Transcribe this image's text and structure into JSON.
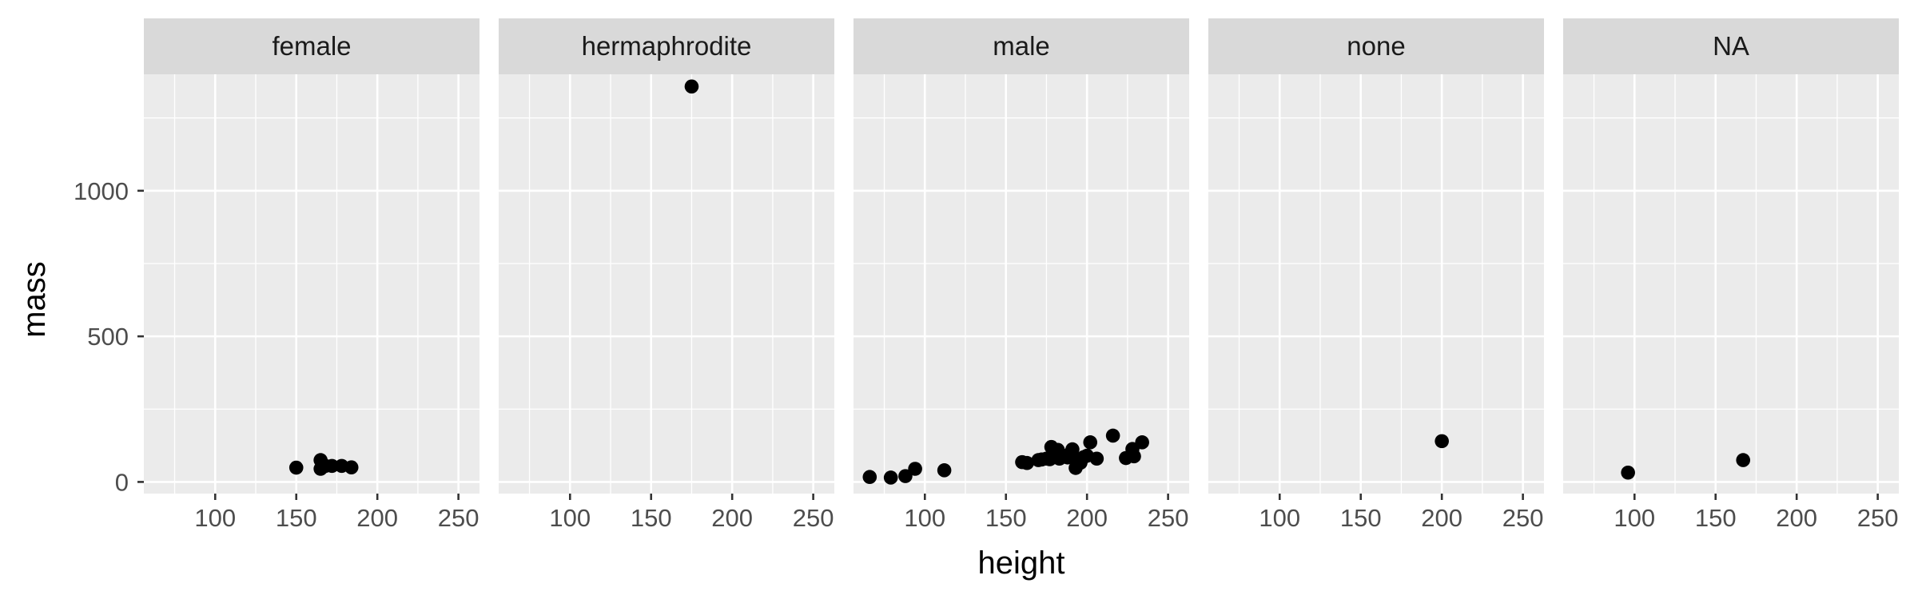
{
  "chart_data": {
    "type": "scatter",
    "xlabel": "height",
    "ylabel": "mass",
    "xlim": [
      56,
      263
    ],
    "ylim": [
      -40,
      1400
    ],
    "x_ticks": [
      100,
      150,
      200,
      250
    ],
    "y_ticks": [
      0,
      500,
      1000
    ],
    "grid": true,
    "facet_by": "sex",
    "panels": [
      {
        "name": "female",
        "points": [
          {
            "x": 150,
            "y": 49
          },
          {
            "x": 165,
            "y": 75
          },
          {
            "x": 165,
            "y": 45
          },
          {
            "x": 168,
            "y": 55
          },
          {
            "x": 172,
            "y": 55
          },
          {
            "x": 178,
            "y": 55
          },
          {
            "x": 184,
            "y": 50
          },
          {
            "x": 166,
            "y": 50
          }
        ]
      },
      {
        "name": "hermaphrodite",
        "points": [
          {
            "x": 175,
            "y": 1358
          }
        ]
      },
      {
        "name": "male",
        "points": [
          {
            "x": 66,
            "y": 17
          },
          {
            "x": 79,
            "y": 15
          },
          {
            "x": 88,
            "y": 20
          },
          {
            "x": 94,
            "y": 45
          },
          {
            "x": 112,
            "y": 40
          },
          {
            "x": 160,
            "y": 68
          },
          {
            "x": 163,
            "y": 65
          },
          {
            "x": 170,
            "y": 75
          },
          {
            "x": 172,
            "y": 77
          },
          {
            "x": 175,
            "y": 80
          },
          {
            "x": 177,
            "y": 78
          },
          {
            "x": 178,
            "y": 120
          },
          {
            "x": 180,
            "y": 85
          },
          {
            "x": 182,
            "y": 110
          },
          {
            "x": 183,
            "y": 80
          },
          {
            "x": 185,
            "y": 90
          },
          {
            "x": 188,
            "y": 84
          },
          {
            "x": 190,
            "y": 100
          },
          {
            "x": 191,
            "y": 112
          },
          {
            "x": 193,
            "y": 48
          },
          {
            "x": 193,
            "y": 80
          },
          {
            "x": 196,
            "y": 66
          },
          {
            "x": 198,
            "y": 85
          },
          {
            "x": 200,
            "y": 90
          },
          {
            "x": 202,
            "y": 136
          },
          {
            "x": 206,
            "y": 80
          },
          {
            "x": 216,
            "y": 159
          },
          {
            "x": 224,
            "y": 82
          },
          {
            "x": 228,
            "y": 113
          },
          {
            "x": 229,
            "y": 88
          },
          {
            "x": 234,
            "y": 136
          }
        ]
      },
      {
        "name": "none",
        "points": [
          {
            "x": 200,
            "y": 140
          }
        ]
      },
      {
        "name": "NA",
        "points": [
          {
            "x": 96,
            "y": 32
          },
          {
            "x": 167,
            "y": 75
          }
        ]
      }
    ]
  }
}
